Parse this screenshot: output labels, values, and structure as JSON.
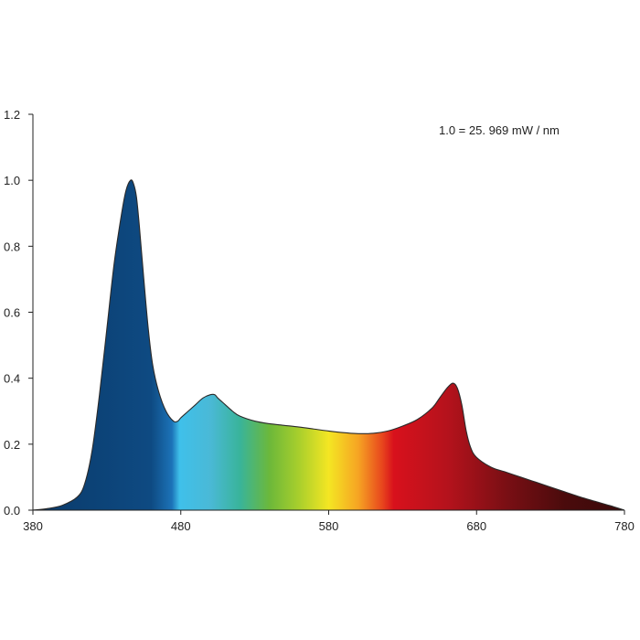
{
  "chart_data": {
    "type": "area",
    "title": "",
    "xlabel": "",
    "ylabel": "",
    "annotation": "1.0 = 25. 969 mW / nm",
    "xlim": [
      380,
      780
    ],
    "ylim": [
      0,
      1.2
    ],
    "x_ticks": [
      380,
      480,
      580,
      680,
      780
    ],
    "x_tick_labels": [
      "380",
      "480",
      "580",
      "680",
      "780"
    ],
    "y_ticks": [
      0,
      0.2,
      0.4,
      0.6,
      0.8,
      1.0,
      1.2
    ],
    "y_tick_labels": [
      "0.0",
      "0.2",
      "0.4",
      "0.6",
      "0.8",
      "1.0",
      "1.2"
    ],
    "grid": false,
    "fill": "visible-spectrum gradient",
    "series": [
      {
        "x": [
          380,
          390,
          400,
          410,
          415,
          420,
          425,
          430,
          435,
          440,
          443,
          446,
          448,
          450,
          452,
          455,
          458,
          461,
          465,
          470,
          475,
          478,
          480,
          485,
          490,
          495,
          500,
          503,
          505,
          510,
          515,
          520,
          530,
          540,
          550,
          560,
          570,
          580,
          590,
          600,
          610,
          620,
          630,
          640,
          650,
          655,
          660,
          664,
          667,
          670,
          673,
          676,
          680,
          690,
          700,
          710,
          720,
          730,
          740,
          750,
          760,
          770,
          780
        ],
        "y": [
          0.0,
          0.005,
          0.015,
          0.04,
          0.08,
          0.18,
          0.35,
          0.55,
          0.75,
          0.9,
          0.97,
          1.0,
          0.99,
          0.95,
          0.86,
          0.7,
          0.55,
          0.44,
          0.36,
          0.3,
          0.27,
          0.27,
          0.28,
          0.3,
          0.32,
          0.34,
          0.35,
          0.35,
          0.34,
          0.32,
          0.3,
          0.285,
          0.27,
          0.262,
          0.257,
          0.252,
          0.246,
          0.24,
          0.235,
          0.232,
          0.233,
          0.24,
          0.255,
          0.275,
          0.31,
          0.34,
          0.37,
          0.385,
          0.37,
          0.32,
          0.24,
          0.19,
          0.16,
          0.13,
          0.115,
          0.1,
          0.085,
          0.07,
          0.055,
          0.04,
          0.027,
          0.014,
          0.0
        ]
      }
    ]
  }
}
